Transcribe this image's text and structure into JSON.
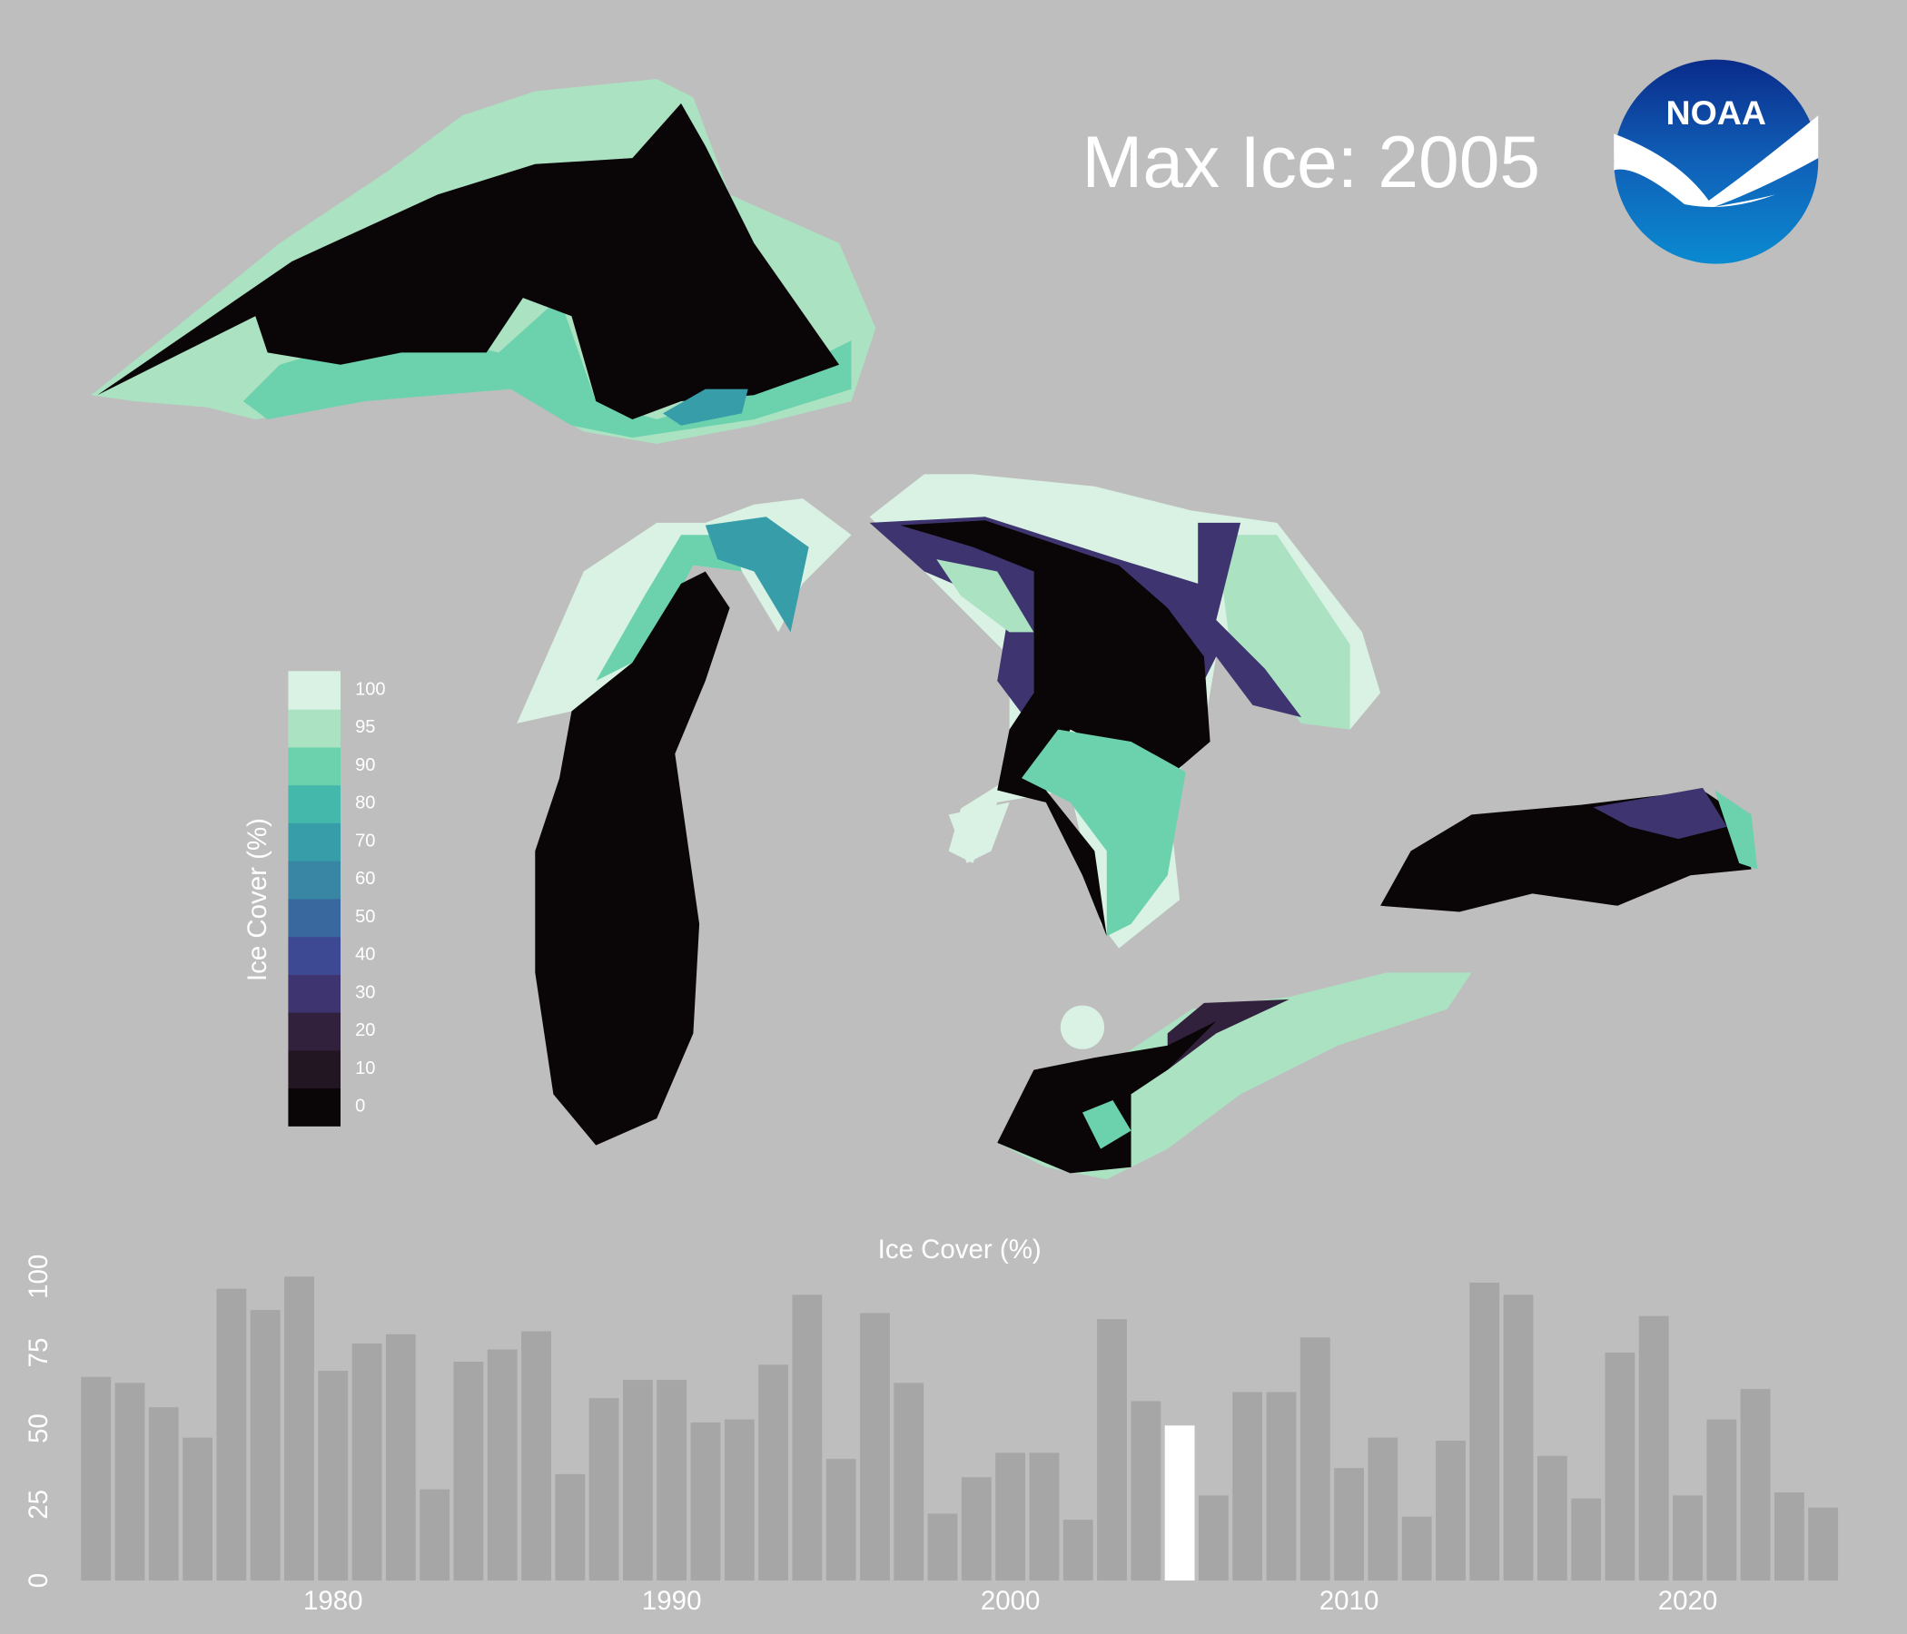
{
  "chart_data": {
    "type": "bar",
    "title": "Max Ice: 2005",
    "logo_text": "NOAA",
    "y_label": "Ice Cover (%)",
    "x": [
      1973,
      1974,
      1975,
      1976,
      1977,
      1978,
      1979,
      1980,
      1981,
      1982,
      1983,
      1984,
      1985,
      1986,
      1987,
      1988,
      1989,
      1990,
      1991,
      1992,
      1993,
      1994,
      1995,
      1996,
      1997,
      1998,
      1999,
      2000,
      2001,
      2002,
      2003,
      2004,
      2005,
      2006,
      2007,
      2008,
      2009,
      2010,
      2011,
      2012,
      2013,
      2014,
      2015,
      2016,
      2017,
      2018,
      2019,
      2020,
      2021,
      2022,
      2023,
      2024
    ],
    "values": [
      67,
      65,
      57,
      47,
      96,
      89,
      100,
      69,
      78,
      81,
      30,
      72,
      76,
      82,
      35,
      60,
      66,
      66,
      52,
      53,
      71,
      94,
      40,
      88,
      65,
      22,
      34,
      42,
      42,
      20,
      86,
      59,
      51,
      28,
      62,
      62,
      80,
      37,
      47,
      21,
      46,
      98,
      94,
      41,
      27,
      75,
      87,
      28,
      53,
      63,
      29,
      24
    ],
    "colors": [
      "#a6a6a6",
      "#a6a6a6",
      "#a6a6a6",
      "#a6a6a6",
      "#a6a6a6",
      "#a6a6a6",
      "#a6a6a6",
      "#a6a6a6",
      "#a6a6a6",
      "#a6a6a6",
      "#a6a6a6",
      "#a6a6a6",
      "#a6a6a6",
      "#a6a6a6",
      "#a6a6a6",
      "#a6a6a6",
      "#a6a6a6",
      "#a6a6a6",
      "#a6a6a6",
      "#a6a6a6",
      "#a6a6a6",
      "#a6a6a6",
      "#a6a6a6",
      "#a6a6a6",
      "#a6a6a6",
      "#a6a6a6",
      "#a6a6a6",
      "#a6a6a6",
      "#a6a6a6",
      "#a6a6a6",
      "#a6a6a6",
      "#a6a6a6",
      "#ffffff",
      "#a6a6a6",
      "#a6a6a6",
      "#a6a6a6",
      "#a6a6a6",
      "#a6a6a6",
      "#a6a6a6",
      "#a6a6a6",
      "#a6a6a6",
      "#a6a6a6",
      "#a6a6a6",
      "#a6a6a6",
      "#a6a6a6",
      "#a6a6a6",
      "#a6a6a6",
      "#a6a6a6",
      "#a6a6a6",
      "#a6a6a6",
      "#a6a6a6",
      "#a6a6a6"
    ],
    "xlim": [
      1972.5,
      2024.5
    ],
    "xticks": [
      1980,
      1990,
      2000,
      2010,
      2020
    ],
    "ylim": [
      0,
      100
    ],
    "yticks": [
      0,
      25,
      50,
      75,
      100
    ],
    "colorbar": {
      "title": "Ice Cover (%)",
      "levels": [
        0,
        10,
        20,
        30,
        40,
        50,
        60,
        70,
        80,
        90,
        95,
        100
      ],
      "colors": [
        "#0a0506",
        "#221622",
        "#32213d",
        "#3e3570",
        "#3d4a93",
        "#38689e",
        "#3885a4",
        "#379ea9",
        "#45b8ac",
        "#6cd2ad",
        "#abe2c2",
        "#d9f2e4"
      ]
    }
  }
}
